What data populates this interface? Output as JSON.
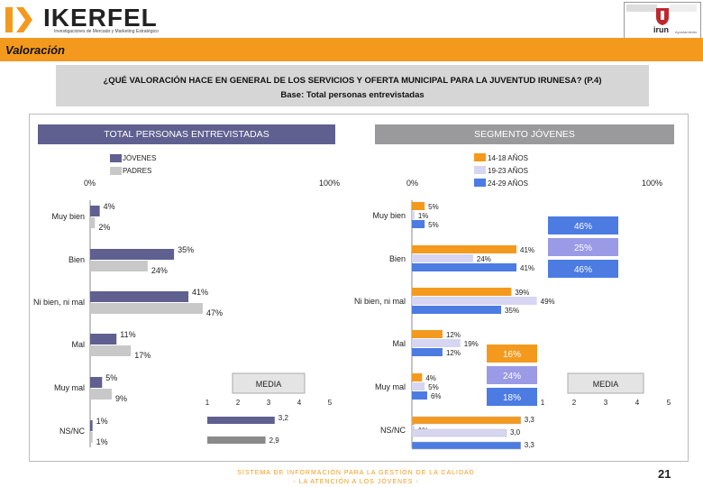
{
  "header": {
    "brand": "IKERFEL",
    "brand_tagline": "Investigaciones de Mercado y Marketing Estratégico",
    "crest_text": "irun",
    "crest_subtext": "Ayuntamiento"
  },
  "section_title": "Valoración",
  "question": "¿QUÉ VALORACIÓN HACE EN GENERAL DE LOS SERVICIOS Y OFERTA MUNICIPAL PARA LA JUVENTUD IRUNESA? (P.4)",
  "base": "Base: Total personas entrevistadas",
  "colors": {
    "orange": "#f39a1e",
    "jovenes": "#5f6090",
    "padres": "#c8c8c8",
    "g1418": "#f39a1e",
    "g1923": "#d6d6f2",
    "g2429": "#4c7be2",
    "seg_box_blue": "#4c7be2",
    "seg_box_lav": "#9a9ae6",
    "seg_box_orange": "#f39a1e"
  },
  "chart_data": [
    {
      "type": "bar",
      "orientation": "horizontal",
      "title": "TOTAL PERSONAS ENTREVISTADAS",
      "axis_min_label": "0%",
      "axis_max_label": "100%",
      "xlim": [
        0,
        100
      ],
      "categories": [
        "Muy bien",
        "Bien",
        "Ni bien, ni mal",
        "Mal",
        "Muy mal",
        "NS/NC"
      ],
      "series": [
        {
          "name": "JÓVENES",
          "values": [
            4,
            35,
            41,
            11,
            5,
            1
          ],
          "labels": [
            "4%",
            "35%",
            "41%",
            "11%",
            "5%",
            "1%"
          ]
        },
        {
          "name": "PADRES",
          "values": [
            2,
            24,
            47,
            17,
            9,
            1
          ],
          "labels": [
            "2%",
            "24%",
            "47%",
            "17%",
            "9%",
            "1%"
          ]
        }
      ],
      "media": {
        "title": "MEDIA",
        "scale": [
          1,
          2,
          3,
          4,
          5
        ],
        "series": [
          {
            "name": "JÓVENES",
            "value": 3.2,
            "label": "3,2"
          },
          {
            "name": "PADRES",
            "value": 2.9,
            "label": "2,9"
          }
        ]
      }
    },
    {
      "type": "bar",
      "orientation": "horizontal",
      "title": "SEGMENTO JÓVENES",
      "axis_min_label": "0%",
      "axis_max_label": "100%",
      "xlim": [
        0,
        100
      ],
      "categories": [
        "Muy bien",
        "Bien",
        "Ni bien, ni mal",
        "Mal",
        "Muy mal",
        "NS/NC"
      ],
      "series": [
        {
          "name": "14-18 AÑOS",
          "values": [
            5,
            41,
            39,
            12,
            4,
            1
          ],
          "labels": [
            "5%",
            "41%",
            "39%",
            "12%",
            "4%",
            "1%"
          ]
        },
        {
          "name": "19-23 AÑOS",
          "values": [
            1,
            24,
            49,
            19,
            5,
            1
          ],
          "labels": [
            "1%",
            "24%",
            "49%",
            "19%",
            "5%",
            "1%"
          ]
        },
        {
          "name": "24-29 AÑOS",
          "values": [
            5,
            41,
            35,
            12,
            6,
            0
          ],
          "labels": [
            "5%",
            "41%",
            "35%",
            "12%",
            "6%",
            ""
          ]
        }
      ],
      "summary_positive": [
        "46%",
        "25%",
        "46%"
      ],
      "summary_negative": [
        "16%",
        "24%",
        "18%"
      ],
      "media": {
        "title": "MEDIA",
        "scale": [
          1,
          2,
          3,
          4,
          5
        ],
        "series": [
          {
            "name": "14-18 AÑOS",
            "value": 3.3,
            "label": "3,3"
          },
          {
            "name": "19-23 AÑOS",
            "value": 3.0,
            "label": "3,0"
          },
          {
            "name": "24-29 AÑOS",
            "value": 3.3,
            "label": "3,3"
          }
        ]
      }
    }
  ],
  "footer": {
    "line1": "SISTEMA DE INFORMACIÓN PARA LA GESTIÓN DE LA CALIDAD",
    "line2": "- LA ATENCIÓN A LOS JÓVENES -",
    "page": "21"
  }
}
